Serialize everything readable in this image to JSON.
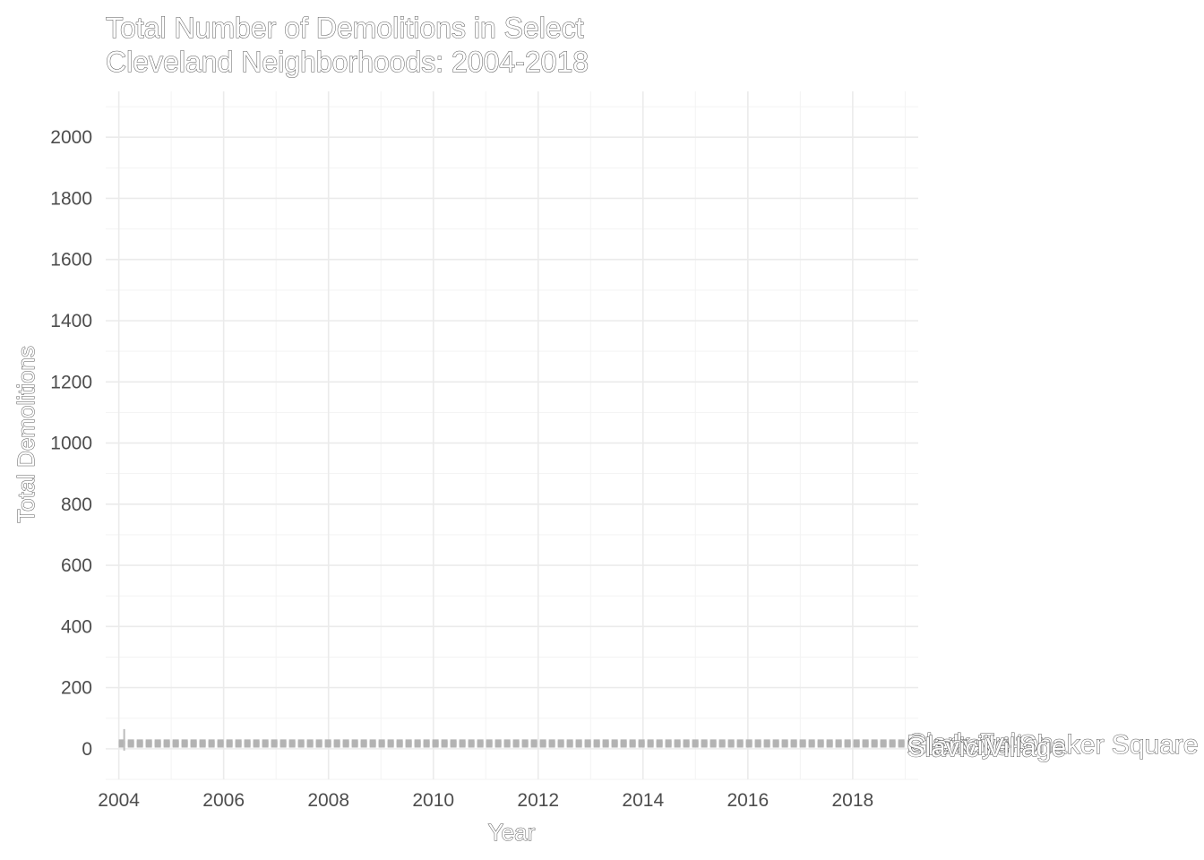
{
  "chart_data": {
    "type": "line",
    "title": "Total Number of Demolitions in Select\nCleveland Neighborhoods: 2004-2018",
    "xlabel": "Year",
    "ylabel": "Total Demolitions",
    "xlim": [
      2003.75,
      2019.25
    ],
    "ylim": [
      -100,
      2150
    ],
    "x_ticks": [
      2004,
      2006,
      2008,
      2010,
      2012,
      2014,
      2016,
      2018
    ],
    "y_ticks": [
      0,
      200,
      400,
      600,
      800,
      1000,
      1200,
      1400,
      1600,
      1800,
      2000
    ],
    "grid": true,
    "line_style": "dashed",
    "line_color": "#b3b3b3",
    "x": [
      2004,
      2005,
      2006,
      2007,
      2008,
      2009,
      2010,
      2011,
      2012,
      2013,
      2014,
      2015,
      2016,
      2017,
      2018,
      2019
    ],
    "series": [
      {
        "values": [
          25,
          25,
          25,
          25,
          25,
          25,
          25,
          25,
          25,
          25,
          25,
          25,
          25,
          25,
          25,
          25
        ]
      },
      {
        "values": [
          20,
          20,
          20,
          20,
          20,
          20,
          20,
          20,
          20,
          20,
          20,
          20,
          20,
          20,
          20,
          20
        ]
      },
      {
        "values": [
          15,
          15,
          15,
          15,
          15,
          15,
          15,
          15,
          15,
          15,
          15,
          15,
          15,
          15,
          15,
          15
        ]
      },
      {
        "values": [
          10,
          10,
          10,
          10,
          10,
          10,
          10,
          10,
          10,
          10,
          10,
          10,
          10,
          10,
          10,
          10
        ]
      }
    ],
    "end_labels": [
      "Clark-Fulton",
      "Buckeye-Shaker Square",
      "Glenville",
      "Slavic Village"
    ]
  }
}
